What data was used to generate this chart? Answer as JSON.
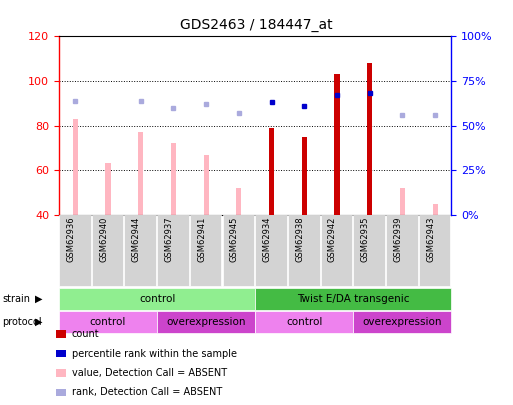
{
  "title": "GDS2463 / 184447_at",
  "samples": [
    "GSM62936",
    "GSM62940",
    "GSM62944",
    "GSM62937",
    "GSM62941",
    "GSM62945",
    "GSM62934",
    "GSM62938",
    "GSM62942",
    "GSM62935",
    "GSM62939",
    "GSM62943"
  ],
  "ylim_left": [
    40,
    120
  ],
  "ylim_right": [
    0,
    100
  ],
  "yticks_left": [
    40,
    60,
    80,
    100,
    120
  ],
  "yticks_right": [
    0,
    25,
    50,
    75,
    100
  ],
  "ytick_labels_right": [
    "0%",
    "25%",
    "50%",
    "75%",
    "100%"
  ],
  "bar_bottom": 40,
  "absent_value": [
    83,
    63,
    77,
    72,
    67,
    52,
    46,
    75,
    null,
    null,
    52,
    45
  ],
  "absent_rank": [
    64,
    null,
    64,
    60,
    62,
    57,
    null,
    null,
    null,
    null,
    56,
    56
  ],
  "count_value": [
    null,
    null,
    null,
    null,
    null,
    null,
    79,
    75,
    103,
    108,
    null,
    null
  ],
  "count_rank": [
    null,
    null,
    null,
    null,
    null,
    null,
    63,
    61,
    67,
    68,
    null,
    null
  ],
  "strain_groups": [
    {
      "label": "control",
      "start": 0,
      "end": 6,
      "color": "#90EE90"
    },
    {
      "label": "Twist E/DA transgenic",
      "start": 6,
      "end": 12,
      "color": "#44BB44"
    }
  ],
  "protocol_groups": [
    {
      "label": "control",
      "start": 0,
      "end": 3,
      "color": "#EE82EE"
    },
    {
      "label": "overexpression",
      "start": 3,
      "end": 6,
      "color": "#CC44CC"
    },
    {
      "label": "control",
      "start": 6,
      "end": 9,
      "color": "#EE82EE"
    },
    {
      "label": "overexpression",
      "start": 9,
      "end": 12,
      "color": "#CC44CC"
    }
  ],
  "absent_value_color": "#FFB6C1",
  "absent_rank_color": "#AAAADD",
  "count_color": "#CC0000",
  "rank_color": "#0000CC",
  "bar_width": 0.35,
  "rank_square_size": 2.5
}
